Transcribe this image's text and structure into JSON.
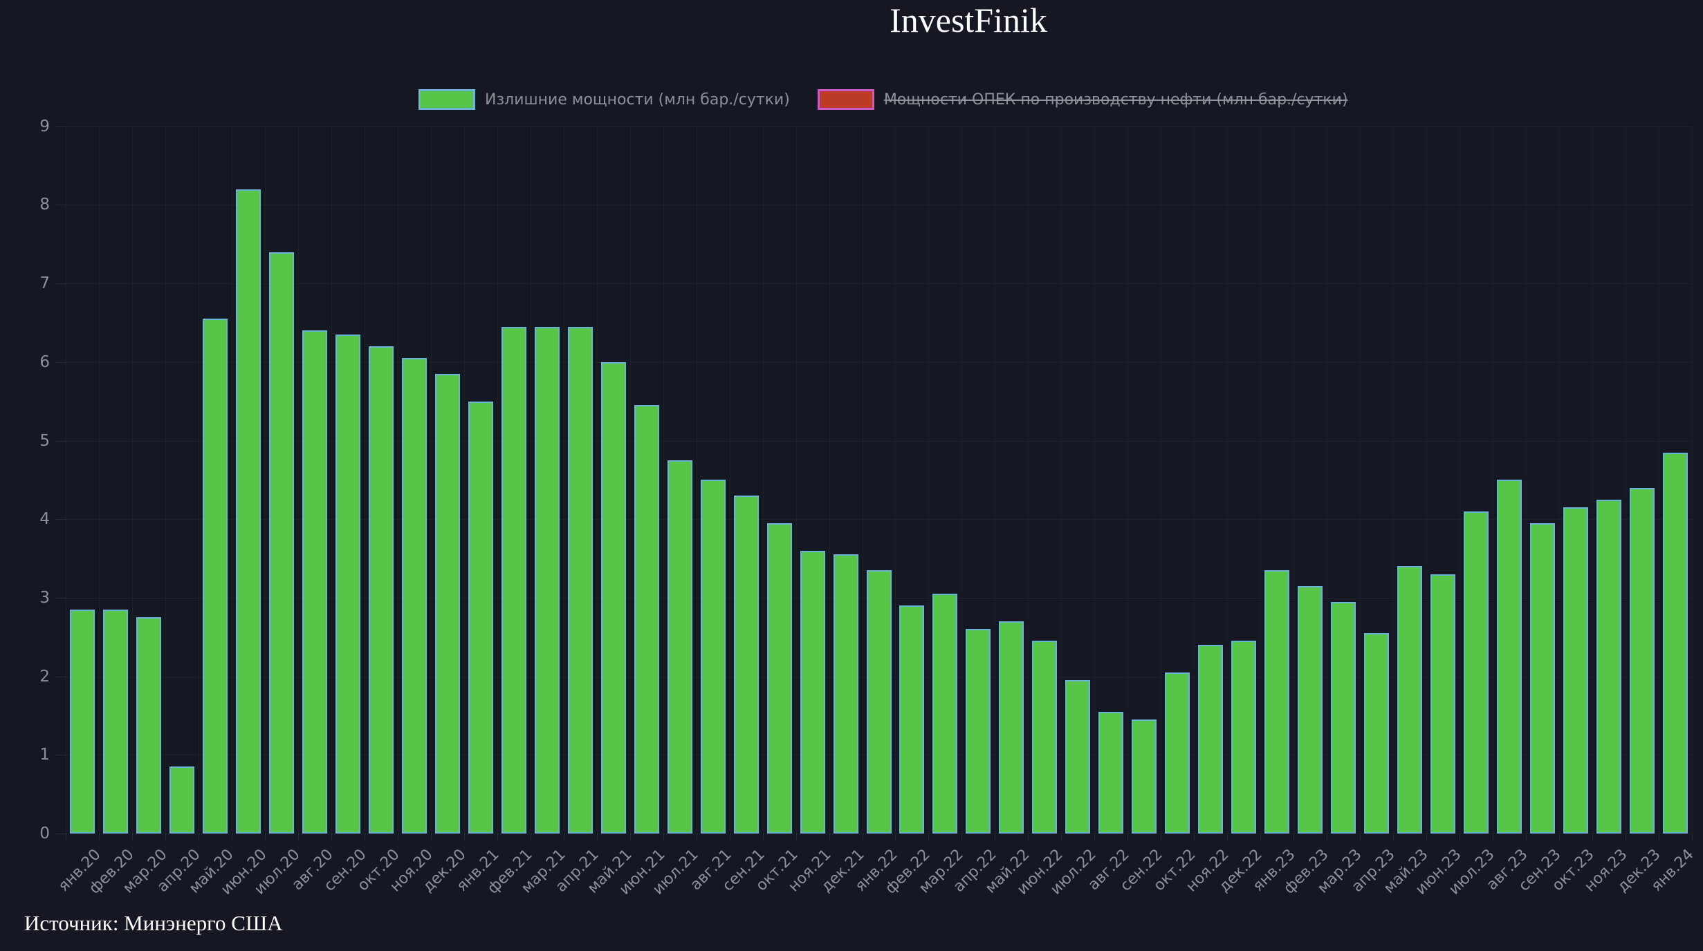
{
  "title": "InvestFinik",
  "source": "Источник: Минэнерго США",
  "colors": {
    "background": "#151823",
    "grid": "#1e2230",
    "axis_text": "#8d9099",
    "bar_fill": "#57c648",
    "bar_border": "#6ab5d3",
    "hidden_series_fill": "#bc3b26",
    "hidden_series_border": "#c95bc6",
    "title_text": "#fdfdfd"
  },
  "legend": {
    "items": [
      {
        "label": "Излишние мощности (млн бар./сутки)",
        "swatch_fill": "#57c648",
        "swatch_border": "#6ab5d3",
        "hidden": false
      },
      {
        "label": "Мощности ОПЕК по производству нефти (млн бар./сутки)",
        "swatch_fill": "#bc3b26",
        "swatch_border": "#c95bc6",
        "hidden": true
      }
    ]
  },
  "chart_data": {
    "type": "bar",
    "title": "InvestFinik",
    "xlabel": "",
    "ylabel": "",
    "ylim": [
      0,
      9
    ],
    "yticks": [
      0,
      1,
      2,
      3,
      4,
      5,
      6,
      7,
      8,
      9
    ],
    "grid": true,
    "legend_position": "top",
    "source": "Источник: Минэнерго США",
    "categories": [
      "янв.20",
      "фев.20",
      "мар.20",
      "апр.20",
      "май.20",
      "июн.20",
      "июл.20",
      "авг.20",
      "сен.20",
      "окт.20",
      "ноя.20",
      "дек.20",
      "янв.21",
      "фев.21",
      "мар.21",
      "апр.21",
      "май.21",
      "июн.21",
      "июл.21",
      "авг.21",
      "сен.21",
      "окт.21",
      "ноя.21",
      "дек.21",
      "янв.22",
      "фев.22",
      "мар.22",
      "апр.22",
      "май.22",
      "июн.22",
      "июл.22",
      "авг.22",
      "сен.22",
      "окт.22",
      "ноя.22",
      "дек.22",
      "янв.23",
      "фев.23",
      "мар.23",
      "апр.23",
      "май.23",
      "июн.23",
      "июл.23",
      "авг.23",
      "сен.23",
      "окт.23",
      "ноя.23",
      "дек.23",
      "янв.24"
    ],
    "series": [
      {
        "name": "Излишние мощности (млн бар./сутки)",
        "visible": true,
        "values": [
          2.85,
          2.85,
          2.75,
          0.85,
          6.55,
          8.2,
          7.4,
          6.4,
          6.35,
          6.2,
          6.05,
          5.85,
          5.5,
          6.45,
          6.45,
          6.45,
          6.0,
          5.45,
          4.75,
          4.5,
          4.3,
          3.95,
          3.6,
          3.55,
          3.35,
          2.9,
          3.05,
          2.6,
          2.7,
          2.45,
          1.95,
          1.55,
          1.45,
          2.05,
          2.4,
          2.45,
          3.35,
          3.15,
          2.95,
          2.55,
          3.4,
          3.3,
          4.1,
          4.5,
          3.95,
          4.15,
          4.25,
          4.4,
          4.85
        ]
      },
      {
        "name": "Мощности ОПЕК по производству нефти (млн бар./сутки)",
        "visible": false,
        "values": []
      }
    ]
  }
}
